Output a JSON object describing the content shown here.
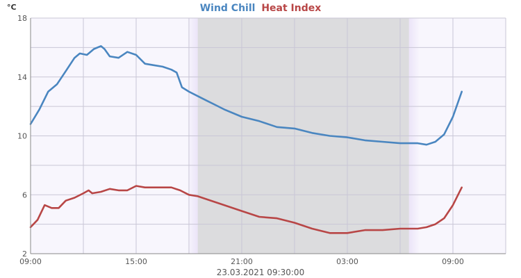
{
  "chart_data": {
    "type": "line",
    "title_parts": [
      {
        "text": "Wind Chill",
        "color": "#4a86c0"
      },
      {
        "text": "Heat Index",
        "color": "#b84646"
      }
    ],
    "unit_label": "°C",
    "footer": "23.03.2021 09:30:00",
    "ylim": [
      2,
      18
    ],
    "y_ticks": [
      2,
      6,
      10,
      14,
      18
    ],
    "xlim": [
      0,
      27
    ],
    "x_ticks": [
      {
        "hour": 0,
        "label": "09:00"
      },
      {
        "hour": 6,
        "label": "15:00"
      },
      {
        "hour": 12,
        "label": "21:00"
      },
      {
        "hour": 18,
        "label": "03:00"
      },
      {
        "hour": 24,
        "label": "09:00"
      }
    ],
    "night_band": {
      "start": 9.5,
      "end": 21.5,
      "color": "#dcdcde",
      "twilight_color": "#ebe4f8"
    },
    "grid": true,
    "background": "#f8f6fd",
    "series": [
      {
        "name": "Wind Chill",
        "color": "#4a86c0",
        "x": [
          0,
          0.5,
          1,
          1.5,
          2,
          2.5,
          2.8,
          3.2,
          3.6,
          4,
          4.2,
          4.5,
          5,
          5.5,
          6,
          6.5,
          7,
          7.5,
          8,
          8.3,
          8.6,
          9,
          9.5,
          10,
          10.5,
          11,
          12,
          13,
          14,
          15,
          16,
          17,
          18,
          19,
          20,
          21,
          22,
          22.5,
          23,
          23.5,
          24,
          24.5
        ],
        "y": [
          10.8,
          11.8,
          13.0,
          13.5,
          14.4,
          15.3,
          15.6,
          15.5,
          15.9,
          16.1,
          15.9,
          15.4,
          15.3,
          15.7,
          15.5,
          14.9,
          14.8,
          14.7,
          14.5,
          14.3,
          13.3,
          13.0,
          12.7,
          12.4,
          12.1,
          11.8,
          11.3,
          11.0,
          10.6,
          10.5,
          10.2,
          10.0,
          9.9,
          9.7,
          9.6,
          9.5,
          9.5,
          9.4,
          9.6,
          10.1,
          11.3,
          13.0
        ]
      },
      {
        "name": "Heat Index",
        "color": "#b84646",
        "x": [
          0,
          0.4,
          0.8,
          1.2,
          1.6,
          2,
          2.5,
          3,
          3.3,
          3.5,
          4,
          4.5,
          5,
          5.5,
          6,
          6.5,
          7,
          7.5,
          8,
          8.5,
          9,
          9.5,
          10,
          11,
          12,
          13,
          14,
          15,
          16,
          17,
          18,
          19,
          20,
          21,
          22,
          22.5,
          23,
          23.5,
          24,
          24.5
        ],
        "y": [
          3.8,
          4.3,
          5.3,
          5.1,
          5.1,
          5.6,
          5.8,
          6.1,
          6.3,
          6.1,
          6.2,
          6.4,
          6.3,
          6.3,
          6.6,
          6.5,
          6.5,
          6.5,
          6.5,
          6.3,
          6.0,
          5.9,
          5.7,
          5.3,
          4.9,
          4.5,
          4.4,
          4.1,
          3.7,
          3.4,
          3.4,
          3.6,
          3.6,
          3.7,
          3.7,
          3.8,
          4.0,
          4.4,
          5.3,
          6.5
        ]
      }
    ]
  }
}
